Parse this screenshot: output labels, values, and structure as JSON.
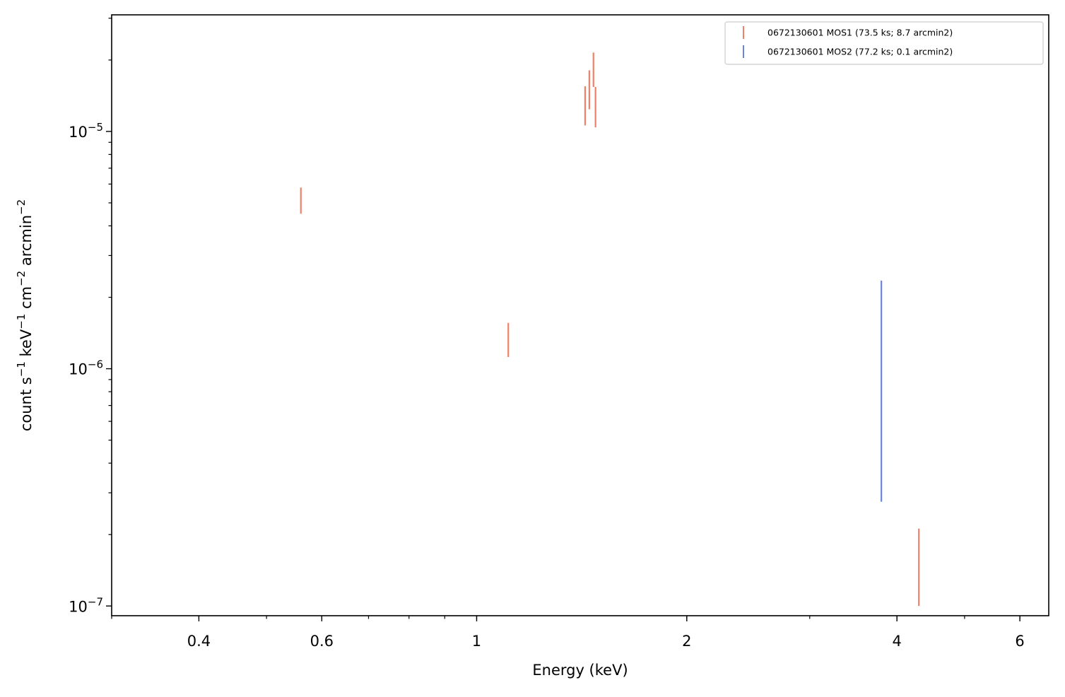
{
  "chart_data": {
    "type": "scatter",
    "title": "",
    "xlabel": "Energy (keV)",
    "ylabel": {
      "parts": [
        {
          "t": "count s"
        },
        {
          "t": "−1",
          "sup": true
        },
        {
          "t": " keV"
        },
        {
          "t": "−1",
          "sup": true
        },
        {
          "t": " cm"
        },
        {
          "t": "−2",
          "sup": true
        },
        {
          "t": " arcmin"
        },
        {
          "t": "−2",
          "sup": true
        }
      ]
    },
    "xscale": "log",
    "yscale": "log",
    "xlim": [
      0.3,
      6.6
    ],
    "ylim": [
      9.1e-08,
      3.1e-05
    ],
    "grid": false,
    "legend_position": "top-right",
    "x_ticks": [
      {
        "value": 0.4,
        "label": "0.4"
      },
      {
        "value": 0.6,
        "label": "0.6"
      },
      {
        "value": 1,
        "label": "1"
      },
      {
        "value": 2,
        "label": "2"
      },
      {
        "value": 4,
        "label": "4"
      },
      {
        "value": 6,
        "label": "6"
      }
    ],
    "y_ticks": [
      {
        "value": 1e-07,
        "base": "10",
        "exp": "−7"
      },
      {
        "value": 1e-06,
        "base": "10",
        "exp": "−6"
      },
      {
        "value": 1e-05,
        "base": "10",
        "exp": "−5"
      }
    ],
    "series": [
      {
        "name": "0672130601 MOS1 (73.5 ks; 8.7 arcmin2)",
        "color": "#f08068",
        "points": [
          {
            "x": 0.56,
            "ylow": 4.5e-06,
            "yhigh": 5.8e-06
          },
          {
            "x": 1.11,
            "ylow": 1.12e-06,
            "yhigh": 1.56e-06
          },
          {
            "x": 1.43,
            "ylow": 1.06e-05,
            "yhigh": 1.55e-05
          },
          {
            "x": 1.45,
            "ylow": 1.24e-05,
            "yhigh": 1.81e-05
          },
          {
            "x": 1.47,
            "ylow": 1.54e-05,
            "yhigh": 2.15e-05
          },
          {
            "x": 1.48,
            "ylow": 1.04e-05,
            "yhigh": 1.54e-05
          },
          {
            "x": 4.3,
            "ylow": 1e-07,
            "yhigh": 2.12e-07
          }
        ]
      },
      {
        "name": "0672130601 MOS2 (77.2 ks; 0.1 arcmin2)",
        "color": "#6a85d8",
        "points": [
          {
            "x": 3.8,
            "ylow": 2.75e-07,
            "yhigh": 2.35e-06
          }
        ]
      }
    ]
  }
}
